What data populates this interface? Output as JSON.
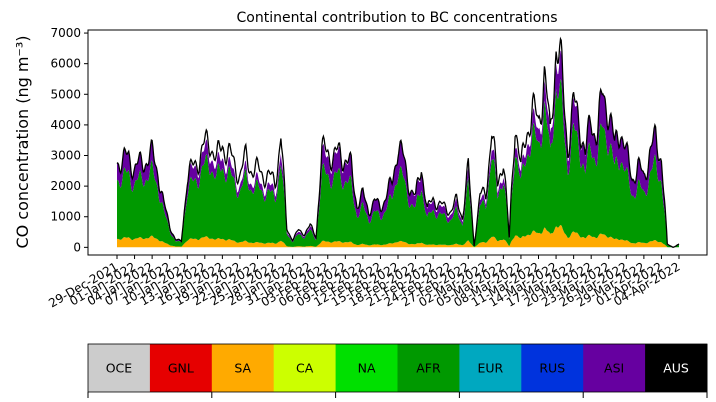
{
  "chart_data": {
    "type": "area",
    "title": "Continental contribution to BC concentrations",
    "ylabel": "CO concentration (ng m⁻³)",
    "xlabel": "",
    "ylim": [
      -250,
      7100
    ],
    "yticks": [
      0,
      1000,
      2000,
      3000,
      4000,
      5000,
      6000,
      7000
    ],
    "grid": false,
    "x_start": "2021-12-29",
    "x_end": "2022-04-04",
    "x_data_start": "2021-12-29",
    "x_data_end": "2022-04-04",
    "xtick_labels": [
      "29-Dec-2021",
      "01-Jan-2022",
      "04-Jan-2022",
      "07-Jan-2022",
      "10-Jan-2022",
      "13-Jan-2022",
      "16-Jan-2022",
      "19-Jan-2022",
      "22-Jan-2022",
      "25-Jan-2022",
      "28-Jan-2022",
      "31-Jan-2022",
      "03-Feb-2022",
      "06-Feb-2022",
      "09-Feb-2022",
      "12-Feb-2022",
      "15-Feb-2022",
      "18-Feb-2022",
      "21-Feb-2022",
      "24-Feb-2022",
      "27-Feb-2022",
      "02-Mar-2022",
      "05-Mar-2022",
      "08-Mar-2022",
      "11-Mar-2022",
      "14-Mar-2022",
      "17-Mar-2022",
      "20-Mar-2022",
      "23-Mar-2022",
      "26-Mar-2022",
      "29-Mar-2022",
      "01-Apr-2022",
      "04-Apr-2022"
    ],
    "series": [
      {
        "name": "SA",
        "color": "#ffaa00"
      },
      {
        "name": "AFR",
        "color": "#009900"
      },
      {
        "name": "ASI",
        "color": "#6600a0"
      },
      {
        "name": "AUS",
        "color": "#000000"
      }
    ],
    "total_profile": [
      [
        "2021-12-29",
        2900
      ],
      [
        "2021-12-30",
        2800
      ],
      [
        "2021-12-31",
        2950
      ],
      [
        "2022-01-01",
        2600
      ],
      [
        "2022-01-02",
        2700
      ],
      [
        "2022-01-03",
        2900
      ],
      [
        "2022-01-04",
        3000
      ],
      [
        "2022-01-05",
        2500
      ],
      [
        "2022-01-06",
        1400
      ],
      [
        "2022-01-07",
        700
      ],
      [
        "2022-01-08",
        250
      ],
      [
        "2022-01-09",
        200
      ],
      [
        "2022-01-10",
        2300
      ],
      [
        "2022-01-11",
        2600
      ],
      [
        "2022-01-12",
        2950
      ],
      [
        "2022-01-13",
        3300
      ],
      [
        "2022-01-14",
        3500
      ],
      [
        "2022-01-15",
        2800
      ],
      [
        "2022-01-16",
        3400
      ],
      [
        "2022-01-17",
        3100
      ],
      [
        "2022-01-18",
        2700
      ],
      [
        "2022-01-19",
        2400
      ],
      [
        "2022-01-20",
        2900
      ],
      [
        "2022-01-21",
        2600
      ],
      [
        "2022-01-22",
        2500
      ],
      [
        "2022-01-23",
        2400
      ],
      [
        "2022-01-24",
        2300
      ],
      [
        "2022-01-25",
        2100
      ],
      [
        "2022-01-26",
        3700
      ],
      [
        "2022-01-27",
        600
      ],
      [
        "2022-01-28",
        250
      ],
      [
        "2022-01-29",
        550
      ],
      [
        "2022-01-30",
        450
      ],
      [
        "2022-01-31",
        700
      ],
      [
        "2022-02-01",
        350
      ],
      [
        "2022-02-02",
        3050
      ],
      [
        "2022-02-03",
        3200
      ],
      [
        "2022-02-04",
        2900
      ],
      [
        "2022-02-05",
        3100
      ],
      [
        "2022-02-06",
        2900
      ],
      [
        "2022-02-07",
        2600
      ],
      [
        "2022-02-08",
        1400
      ],
      [
        "2022-02-09",
        1700
      ],
      [
        "2022-02-10",
        1200
      ],
      [
        "2022-02-11",
        1500
      ],
      [
        "2022-02-12",
        1300
      ],
      [
        "2022-02-13",
        1700
      ],
      [
        "2022-02-14",
        2100
      ],
      [
        "2022-02-15",
        3400
      ],
      [
        "2022-02-16",
        2800
      ],
      [
        "2022-02-17",
        2000
      ],
      [
        "2022-02-18",
        1600
      ],
      [
        "2022-02-19",
        2700
      ],
      [
        "2022-02-20",
        1200
      ],
      [
        "2022-02-21",
        1600
      ],
      [
        "2022-02-22",
        1400
      ],
      [
        "2022-02-23",
        1300
      ],
      [
        "2022-02-24",
        1200
      ],
      [
        "2022-02-25",
        1500
      ],
      [
        "2022-02-26",
        1000
      ],
      [
        "2022-02-27",
        2600
      ],
      [
        "2022-02-28",
        50
      ],
      [
        "2022-03-01",
        1700
      ],
      [
        "2022-03-02",
        1700
      ],
      [
        "2022-03-03",
        3900
      ],
      [
        "2022-03-04",
        2000
      ],
      [
        "2022-03-05",
        3000
      ],
      [
        "2022-03-06",
        300
      ],
      [
        "2022-03-07",
        4200
      ],
      [
        "2022-03-08",
        2500
      ],
      [
        "2022-03-09",
        3900
      ],
      [
        "2022-03-10",
        4400
      ],
      [
        "2022-03-11",
        4100
      ],
      [
        "2022-03-12",
        5700
      ],
      [
        "2022-03-13",
        3600
      ],
      [
        "2022-03-14",
        6700
      ],
      [
        "2022-03-15",
        5600
      ],
      [
        "2022-03-16",
        3300
      ],
      [
        "2022-03-17",
        4600
      ],
      [
        "2022-03-18",
        4200
      ],
      [
        "2022-03-19",
        3000
      ],
      [
        "2022-03-20",
        4200
      ],
      [
        "2022-03-21",
        3700
      ],
      [
        "2022-03-22",
        4950
      ],
      [
        "2022-03-23",
        4600
      ],
      [
        "2022-03-24",
        3200
      ],
      [
        "2022-03-25",
        4000
      ],
      [
        "2022-03-26",
        3000
      ],
      [
        "2022-03-27",
        2300
      ],
      [
        "2022-03-28",
        2600
      ],
      [
        "2022-03-29",
        2300
      ],
      [
        "2022-03-30",
        3100
      ],
      [
        "2022-03-31",
        3500
      ],
      [
        "2022-04-01",
        3000
      ],
      [
        "2022-04-02",
        100
      ],
      [
        "2022-04-03",
        0
      ],
      [
        "2022-04-04",
        100
      ]
    ]
  },
  "legend_bar": {
    "items": [
      {
        "label": "OCE",
        "color": "#cccccc",
        "text_color": "#000000"
      },
      {
        "label": "GNL",
        "color": "#e60000",
        "text_color": "#000000"
      },
      {
        "label": "SA",
        "color": "#ffaa00",
        "text_color": "#000000"
      },
      {
        "label": "CA",
        "color": "#ccff00",
        "text_color": "#000000"
      },
      {
        "label": "NA",
        "color": "#00e000",
        "text_color": "#000000"
      },
      {
        "label": "AFR",
        "color": "#009900",
        "text_color": "#000000"
      },
      {
        "label": "EUR",
        "color": "#00a8c0",
        "text_color": "#000000"
      },
      {
        "label": "RUS",
        "color": "#0033dd",
        "text_color": "#000000"
      },
      {
        "label": "ASI",
        "color": "#6600a0",
        "text_color": "#000000"
      },
      {
        "label": "AUS",
        "color": "#000000",
        "text_color": "#ffffff"
      }
    ]
  }
}
